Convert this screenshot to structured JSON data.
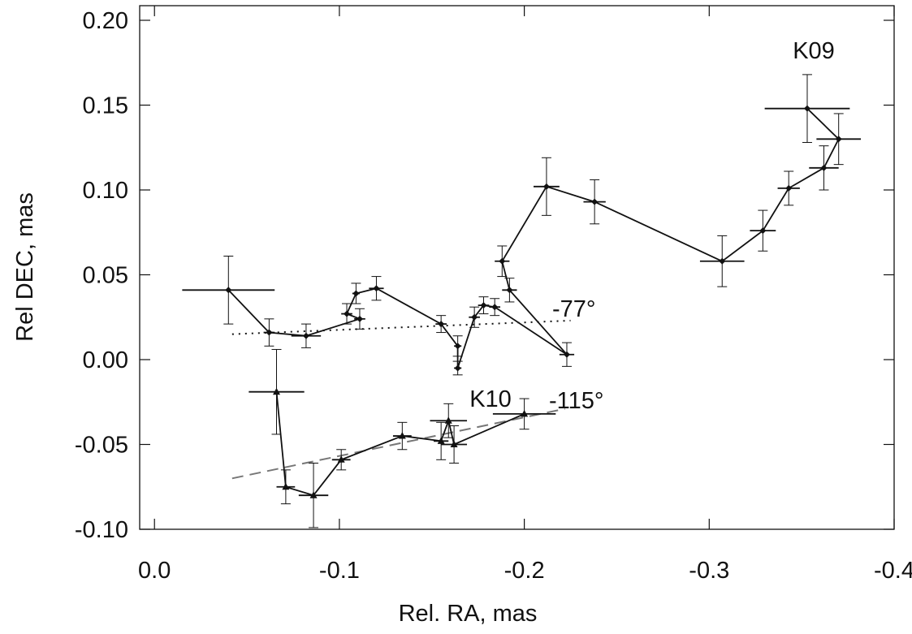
{
  "chart_data": {
    "type": "scatter",
    "xlabel": "Rel. RA, mas",
    "ylabel": "Rel DEC, mas",
    "xlim": [
      0.008,
      -0.4
    ],
    "ylim": [
      -0.1,
      0.2
    ],
    "x_ticks": [
      {
        "value": 0.0,
        "label": "0.0"
      },
      {
        "value": -0.1,
        "label": "-0.1"
      },
      {
        "value": -0.2,
        "label": "-0.2"
      },
      {
        "value": -0.3,
        "label": "-0.3"
      },
      {
        "value": -0.4,
        "label": "-0.4"
      }
    ],
    "y_ticks": [
      {
        "value": 0.2,
        "label": "0.20"
      },
      {
        "value": 0.15,
        "label": "0.15"
      },
      {
        "value": 0.1,
        "label": "0.10"
      },
      {
        "value": 0.05,
        "label": "0.05"
      },
      {
        "value": 0.0,
        "label": "0.00"
      },
      {
        "value": -0.05,
        "label": "-0.05"
      },
      {
        "value": -0.1,
        "label": "-0.10"
      }
    ],
    "series": [
      {
        "name": "K09",
        "marker": "diamond",
        "points": [
          {
            "x": -0.353,
            "y": 0.148,
            "xerr": 0.023,
            "yerr": 0.02
          },
          {
            "x": -0.37,
            "y": 0.13,
            "xerr": 0.012,
            "yerr": 0.015
          },
          {
            "x": -0.362,
            "y": 0.113,
            "xerr": 0.008,
            "yerr": 0.013
          },
          {
            "x": -0.343,
            "y": 0.101,
            "xerr": 0.006,
            "yerr": 0.01
          },
          {
            "x": -0.329,
            "y": 0.076,
            "xerr": 0.007,
            "yerr": 0.012
          },
          {
            "x": -0.307,
            "y": 0.058,
            "xerr": 0.012,
            "yerr": 0.015
          },
          {
            "x": -0.238,
            "y": 0.093,
            "xerr": 0.006,
            "yerr": 0.013
          },
          {
            "x": -0.212,
            "y": 0.102,
            "xerr": 0.007,
            "yerr": 0.017
          },
          {
            "x": -0.188,
            "y": 0.058,
            "xerr": 0.004,
            "yerr": 0.009
          },
          {
            "x": -0.192,
            "y": 0.041,
            "xerr": 0.004,
            "yerr": 0.007
          },
          {
            "x": -0.223,
            "y": 0.003,
            "xerr": 0.004,
            "yerr": 0.007
          },
          {
            "x": -0.184,
            "y": 0.031,
            "xerr": 0.003,
            "yerr": 0.005
          },
          {
            "x": -0.178,
            "y": 0.032,
            "xerr": 0.003,
            "yerr": 0.005
          },
          {
            "x": -0.173,
            "y": 0.025,
            "xerr": 0.003,
            "yerr": 0.006
          },
          {
            "x": -0.164,
            "y": -0.005,
            "xerr": 0.002,
            "yerr": 0.004
          },
          {
            "x": -0.164,
            "y": 0.008,
            "xerr": 0.002,
            "yerr": 0.006
          },
          {
            "x": -0.155,
            "y": 0.021,
            "xerr": 0.003,
            "yerr": 0.005
          },
          {
            "x": -0.12,
            "y": 0.042,
            "xerr": 0.004,
            "yerr": 0.007
          },
          {
            "x": -0.109,
            "y": 0.039,
            "xerr": 0.002,
            "yerr": 0.006
          },
          {
            "x": -0.104,
            "y": 0.027,
            "xerr": 0.003,
            "yerr": 0.006
          },
          {
            "x": -0.111,
            "y": 0.024,
            "xerr": 0.003,
            "yerr": 0.006
          },
          {
            "x": -0.082,
            "y": 0.014,
            "xerr": 0.008,
            "yerr": 0.007
          },
          {
            "x": -0.062,
            "y": 0.016,
            "xerr": 0.003,
            "yerr": 0.008
          },
          {
            "x": -0.04,
            "y": 0.041,
            "xerr": 0.025,
            "yerr": 0.02
          }
        ],
        "trend": {
          "x": [
            -0.042,
            -0.225
          ],
          "y": [
            0.015,
            0.023
          ],
          "style": "dotted",
          "color": "#111111"
        },
        "angle_label": "-77°"
      },
      {
        "name": "K10",
        "marker": "triangle",
        "points": [
          {
            "x": -0.066,
            "y": -0.019,
            "xerr": 0.015,
            "yerr": 0.025
          },
          {
            "x": -0.071,
            "y": -0.075,
            "xerr": 0.005,
            "yerr": 0.01
          },
          {
            "x": -0.086,
            "y": -0.08,
            "xerr": 0.008,
            "yerr": 0.019
          },
          {
            "x": -0.101,
            "y": -0.059,
            "xerr": 0.005,
            "yerr": 0.006
          },
          {
            "x": -0.134,
            "y": -0.045,
            "xerr": 0.005,
            "yerr": 0.008
          },
          {
            "x": -0.155,
            "y": -0.048,
            "xerr": 0.004,
            "yerr": 0.011
          },
          {
            "x": -0.159,
            "y": -0.036,
            "xerr": 0.01,
            "yerr": 0.01
          },
          {
            "x": -0.162,
            "y": -0.05,
            "xerr": 0.007,
            "yerr": 0.011
          },
          {
            "x": -0.2,
            "y": -0.032,
            "xerr": 0.017,
            "yerr": 0.009
          }
        ],
        "trend": {
          "x": [
            -0.042,
            -0.222
          ],
          "y": [
            -0.07,
            -0.029
          ],
          "style": "dashed",
          "color": "#777777"
        },
        "angle_label": "-115°"
      }
    ],
    "grid": false
  }
}
